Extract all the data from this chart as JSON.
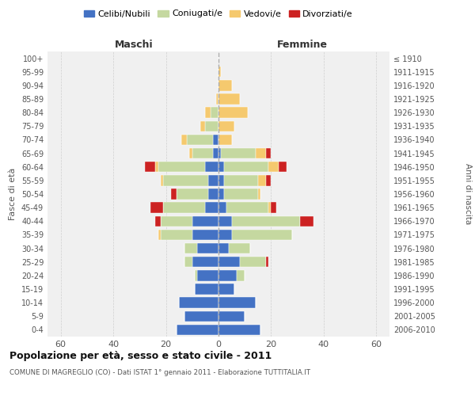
{
  "age_groups": [
    "0-4",
    "5-9",
    "10-14",
    "15-19",
    "20-24",
    "25-29",
    "30-34",
    "35-39",
    "40-44",
    "45-49",
    "50-54",
    "55-59",
    "60-64",
    "65-69",
    "70-74",
    "75-79",
    "80-84",
    "85-89",
    "90-94",
    "95-99",
    "100+"
  ],
  "birth_years": [
    "2006-2010",
    "2001-2005",
    "1996-2000",
    "1991-1995",
    "1986-1990",
    "1981-1985",
    "1976-1980",
    "1971-1975",
    "1966-1970",
    "1961-1965",
    "1956-1960",
    "1951-1955",
    "1946-1950",
    "1941-1945",
    "1936-1940",
    "1931-1935",
    "1926-1930",
    "1921-1925",
    "1916-1920",
    "1911-1915",
    "≤ 1910"
  ],
  "maschi": {
    "celibi": [
      16,
      13,
      15,
      9,
      8,
      10,
      8,
      10,
      10,
      5,
      4,
      4,
      5,
      2,
      2,
      0,
      0,
      0,
      0,
      0,
      0
    ],
    "coniugati": [
      0,
      0,
      0,
      0,
      1,
      3,
      5,
      12,
      12,
      16,
      12,
      17,
      18,
      8,
      10,
      5,
      3,
      0,
      0,
      0,
      0
    ],
    "vedovi": [
      0,
      0,
      0,
      0,
      0,
      0,
      0,
      1,
      0,
      0,
      0,
      1,
      1,
      1,
      2,
      2,
      2,
      1,
      0,
      0,
      0
    ],
    "divorziati": [
      0,
      0,
      0,
      0,
      0,
      0,
      0,
      0,
      2,
      5,
      2,
      0,
      4,
      0,
      0,
      0,
      0,
      0,
      0,
      0,
      0
    ]
  },
  "femmine": {
    "nubili": [
      16,
      10,
      14,
      6,
      7,
      8,
      4,
      5,
      5,
      3,
      2,
      2,
      2,
      1,
      0,
      0,
      0,
      0,
      0,
      0,
      0
    ],
    "coniugate": [
      0,
      0,
      0,
      0,
      3,
      10,
      8,
      23,
      26,
      16,
      13,
      13,
      17,
      13,
      0,
      0,
      0,
      0,
      0,
      0,
      0
    ],
    "vedove": [
      0,
      0,
      0,
      0,
      0,
      0,
      0,
      0,
      0,
      1,
      1,
      3,
      4,
      4,
      5,
      6,
      11,
      8,
      5,
      1,
      0
    ],
    "divorziate": [
      0,
      0,
      0,
      0,
      0,
      1,
      0,
      0,
      5,
      2,
      0,
      2,
      3,
      2,
      0,
      0,
      0,
      0,
      0,
      0,
      0
    ]
  },
  "colors": {
    "celibi": "#4472c4",
    "coniugati": "#c5d8a0",
    "vedovi": "#f5c96e",
    "divorziati": "#cc2222"
  },
  "xlim": 65,
  "title": "Popolazione per età, sesso e stato civile - 2011",
  "subtitle": "COMUNE DI MAGREGLIO (CO) - Dati ISTAT 1° gennaio 2011 - Elaborazione TUTTITALIA.IT",
  "ylabel": "Fasce di età",
  "ylabel_right": "Anni di nascita",
  "bg_color": "#f0f0f0",
  "grid_color": "#cccccc"
}
